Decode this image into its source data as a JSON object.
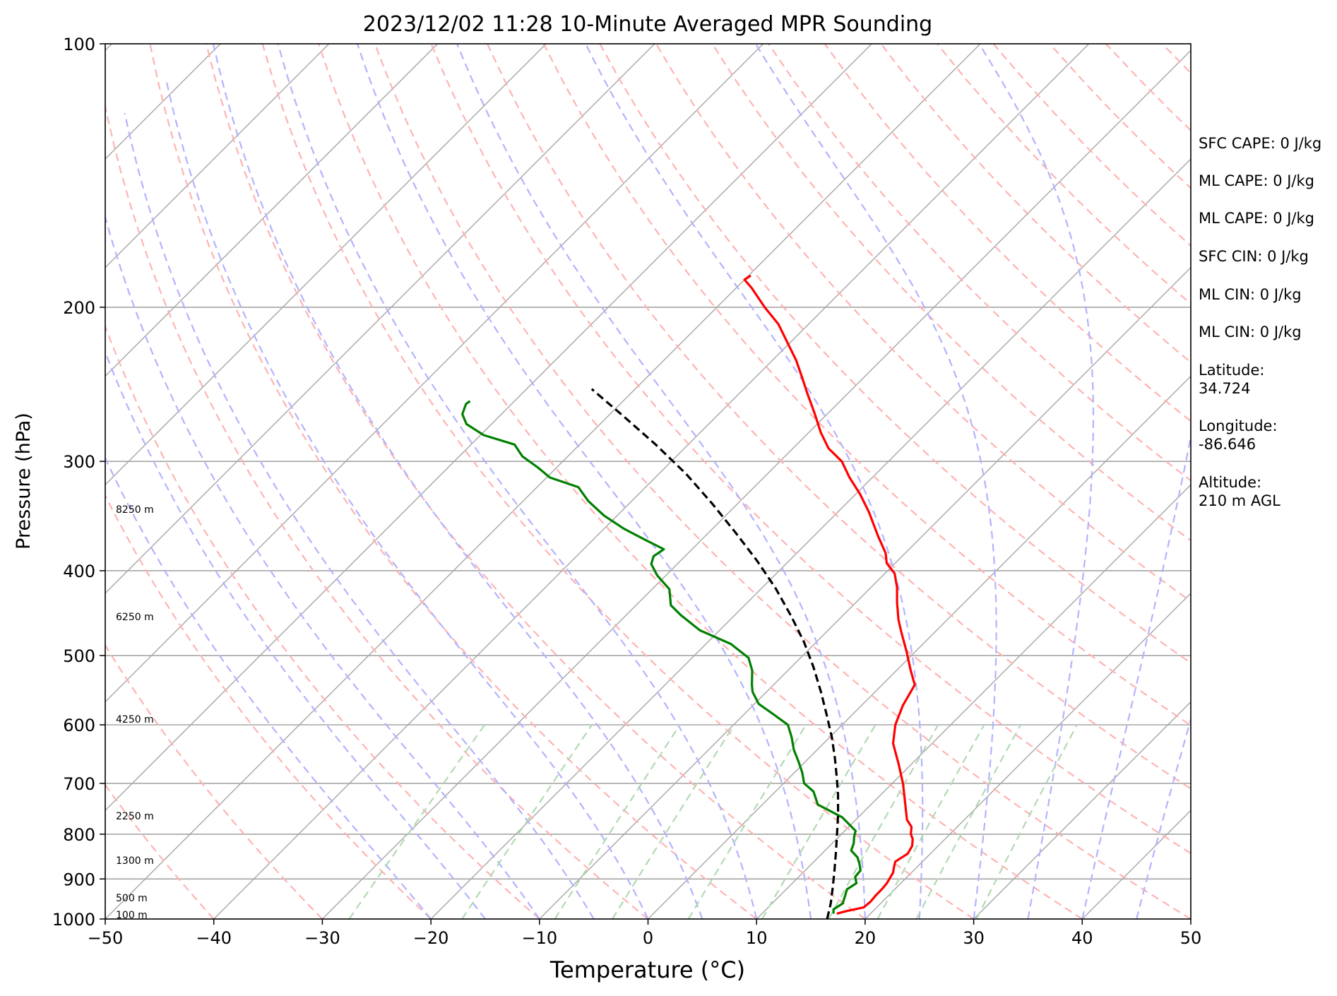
{
  "chart_data": {
    "type": "line",
    "title": "2023/12/02 11:28 10-Minute Averaged MPR Sounding",
    "xlabel": "Temperature (°C)",
    "ylabel": "Pressure (hPa)",
    "xlim": [
      -50,
      50
    ],
    "ylim": [
      1000,
      100
    ],
    "y_scale": "log",
    "grid": true,
    "x_ticks": [
      "−50",
      "−40",
      "−30",
      "−20",
      "−10",
      "0",
      "10",
      "20",
      "30",
      "40",
      "50"
    ],
    "y_ticks": [
      "100",
      "200",
      "300",
      "400",
      "500",
      "600",
      "700",
      "800",
      "900",
      "1000"
    ],
    "skew_diagram": true,
    "series": [
      {
        "key": "temperature",
        "color": "#ff0000",
        "points": [
          [
            16.9,
            986
          ],
          [
            17.5,
            980
          ],
          [
            18.8,
            970
          ],
          [
            18.9,
            955
          ],
          [
            18.8,
            940
          ],
          [
            18.8,
            925
          ],
          [
            18.7,
            910
          ],
          [
            18.3,
            885
          ],
          [
            17.8,
            870
          ],
          [
            17.5,
            860
          ],
          [
            17.9,
            842
          ],
          [
            17.6,
            825
          ],
          [
            17.0,
            810
          ],
          [
            16.4,
            800
          ],
          [
            15.8,
            785
          ],
          [
            14.7,
            770
          ],
          [
            12.9,
            735
          ],
          [
            11.0,
            700
          ],
          [
            8.8,
            665
          ],
          [
            6.4,
            630
          ],
          [
            4.9,
            600
          ],
          [
            3.8,
            570
          ],
          [
            3.0,
            540
          ],
          [
            1.3,
            520
          ],
          [
            -0.8,
            495
          ],
          [
            -3.1,
            470
          ],
          [
            -4.5,
            455
          ],
          [
            -6.2,
            435
          ],
          [
            -7.6,
            418
          ],
          [
            -9.1,
            403
          ],
          [
            -10.8,
            392
          ],
          [
            -11.8,
            382
          ],
          [
            -14.1,
            365
          ],
          [
            -17.1,
            343
          ],
          [
            -19.6,
            327
          ],
          [
            -22.1,
            313
          ],
          [
            -24.3,
            300
          ],
          [
            -26.7,
            290
          ],
          [
            -28.9,
            278
          ],
          [
            -31.3,
            264
          ],
          [
            -33.9,
            250
          ],
          [
            -35.6,
            241
          ],
          [
            -37.8,
            230
          ],
          [
            -40.6,
            218
          ],
          [
            -42.8,
            209
          ],
          [
            -45.6,
            200
          ],
          [
            -48.6,
            190
          ],
          [
            -50.0,
            186
          ],
          [
            -49.8,
            184
          ]
        ]
      },
      {
        "key": "dewpoint",
        "color": "#008000",
        "points": [
          [
            16.6,
            986
          ],
          [
            16.2,
            975
          ],
          [
            16.5,
            960
          ],
          [
            16.0,
            940
          ],
          [
            15.6,
            925
          ],
          [
            15.9,
            910
          ],
          [
            15.2,
            895
          ],
          [
            15.1,
            880
          ],
          [
            14.4,
            865
          ],
          [
            13.6,
            850
          ],
          [
            12.4,
            835
          ],
          [
            12.0,
            820
          ],
          [
            11.4,
            805
          ],
          [
            11.0,
            793
          ],
          [
            8.5,
            765
          ],
          [
            5.1,
            740
          ],
          [
            3.5,
            715
          ],
          [
            1.9,
            700
          ],
          [
            0.7,
            680
          ],
          [
            -0.7,
            660
          ],
          [
            -2.2,
            640
          ],
          [
            -3.5,
            620
          ],
          [
            -5.0,
            600
          ],
          [
            -7.1,
            585
          ],
          [
            -9.6,
            568
          ],
          [
            -11.3,
            550
          ],
          [
            -12.0,
            540
          ],
          [
            -13.3,
            520
          ],
          [
            -14.8,
            503
          ],
          [
            -17.7,
            485
          ],
          [
            -21.8,
            468
          ],
          [
            -24.9,
            450
          ],
          [
            -26.8,
            438
          ],
          [
            -28.4,
            420
          ],
          [
            -30.8,
            405
          ],
          [
            -32.4,
            393
          ],
          [
            -32.9,
            385
          ],
          [
            -32.6,
            378
          ],
          [
            -35.4,
            368
          ],
          [
            -38.2,
            358
          ],
          [
            -41.2,
            346
          ],
          [
            -44.0,
            333
          ],
          [
            -46.2,
            321
          ],
          [
            -49.7,
            313
          ],
          [
            -51.7,
            305
          ],
          [
            -54.2,
            296
          ],
          [
            -56.0,
            287
          ],
          [
            -59.7,
            280
          ],
          [
            -62.3,
            272
          ],
          [
            -63.6,
            265
          ],
          [
            -64.2,
            258
          ],
          [
            -64.1,
            256
          ]
        ]
      },
      {
        "key": "parcel",
        "color": "#000000",
        "dashed": true,
        "points": [
          [
            16.5,
            1000
          ],
          [
            15.4,
            960
          ],
          [
            14.1,
            920
          ],
          [
            12.7,
            880
          ],
          [
            11.2,
            840
          ],
          [
            9.6,
            800
          ],
          [
            7.9,
            760
          ],
          [
            6.0,
            720
          ],
          [
            4.4,
            690
          ],
          [
            2.4,
            655
          ],
          [
            0.2,
            620
          ],
          [
            -2.3,
            585
          ],
          [
            -5.0,
            550
          ],
          [
            -8.0,
            515
          ],
          [
            -11.2,
            482
          ],
          [
            -14.8,
            450
          ],
          [
            -18.7,
            419
          ],
          [
            -22.9,
            390
          ],
          [
            -27.5,
            362
          ],
          [
            -32.4,
            335
          ],
          [
            -37.5,
            310
          ],
          [
            -43.0,
            287
          ],
          [
            -48.4,
            267
          ],
          [
            -54.0,
            248
          ]
        ]
      }
    ],
    "height_labels": [
      "8250 m",
      "6250 m",
      "4250 m",
      "2250 m",
      "1300 m",
      "500 m",
      "100 m"
    ],
    "indices": {
      "sfc_cape": "SFC CAPE: 0 J/kg",
      "ml_cape_1": "ML CAPE: 0 J/kg",
      "ml_cape_2": "ML CAPE: 0 J/kg",
      "sfc_cin": "SFC CIN: 0 J/kg",
      "ml_cin_1": "ML CIN: 0 J/kg",
      "ml_cin_2": "ML CIN: 0 J/kg",
      "latitude_label": "Latitude:",
      "latitude_value": "34.724",
      "longitude_label": "Longitude:",
      "longitude_value": "-86.646",
      "altitude_label": "Altitude:",
      "altitude_value": "210 m AGL"
    },
    "colors": {
      "isotherms": "#a6a6a6",
      "isobars": "#a6a6a6",
      "dry_adiabats": "#ffb3b3",
      "moist_adiabats": "#b3b3ff",
      "mixing_ratio_lines": "#b3d9b3"
    }
  }
}
